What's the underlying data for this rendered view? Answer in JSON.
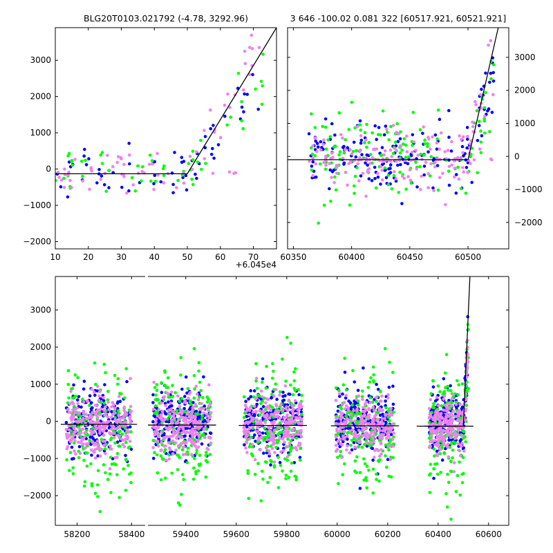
{
  "colors": {
    "background": "#ffffff",
    "series_1": "#0000ff",
    "series_2": "#00ff00",
    "series_3": "#ee82ee",
    "model_line": "#000000"
  },
  "chart_data": [
    {
      "id": "top-left",
      "type": "scatter",
      "title": "BLG20T0103.021792 (-4.78, 3292.96)",
      "xlabel": "",
      "ylabel": "",
      "x_offset_label": "+6.045e4",
      "xlim": [
        10,
        77
      ],
      "ylim": [
        -2200,
        3900
      ],
      "xticks": [
        10,
        20,
        30,
        40,
        50,
        60,
        70
      ],
      "yticks": [
        -2000,
        -1000,
        0,
        1000,
        2000,
        3000
      ],
      "ytick_side": "left",
      "grid": false,
      "legend": "none",
      "model": {
        "x": [
          10,
          50,
          77
        ],
        "y": [
          -130,
          -130,
          3900
        ]
      },
      "series": [
        {
          "color": "#0000ff",
          "n": 60,
          "xrange": [
            10,
            72
          ],
          "center": -100,
          "spread": 350,
          "rise_start": 52,
          "rise_slope": 140,
          "seed": 11
        },
        {
          "color": "#00ff00",
          "n": 55,
          "xrange": [
            10,
            73
          ],
          "center": -120,
          "spread": 380,
          "rise_start": 52,
          "rise_slope": 120,
          "seed": 23
        },
        {
          "color": "#ee82ee",
          "n": 70,
          "xrange": [
            10,
            73
          ],
          "center": -110,
          "spread": 260,
          "rise_start": 50,
          "rise_slope": 165,
          "flat_level": -120,
          "seed": 37
        }
      ]
    },
    {
      "id": "top-right",
      "type": "scatter",
      "title": "3 646 -100.02 0.081 322 [60517.921, 60521.921]",
      "xlabel": "",
      "ylabel": "",
      "xlim": [
        60345,
        60535
      ],
      "ylim": [
        -2800,
        3900
      ],
      "xticks": [
        60350,
        60400,
        60450,
        60500
      ],
      "yticks": [
        -2000,
        -1000,
        0,
        1000,
        2000,
        3000
      ],
      "ytick_side": "right",
      "grid": false,
      "legend": "none",
      "model": {
        "x": [
          60345,
          60500,
          60526
        ],
        "y": [
          -100,
          -100,
          3900
        ]
      },
      "series": [
        {
          "color": "#0000ff",
          "n": 170,
          "xrange": [
            60363,
            60522
          ],
          "center": 0,
          "spread": 500,
          "rise_start": 60502,
          "rise_slope": 130,
          "seed": 51
        },
        {
          "color": "#00ff00",
          "n": 150,
          "xrange": [
            60363,
            60522
          ],
          "center": -40,
          "spread": 620,
          "rise_start": 60502,
          "rise_slope": 120,
          "seed": 67
        },
        {
          "color": "#ee82ee",
          "n": 180,
          "xrange": [
            60363,
            60522
          ],
          "center": -60,
          "spread": 450,
          "rise_start": 60500,
          "rise_slope": 150,
          "flat_level": -100,
          "seed": 79
        }
      ]
    },
    {
      "id": "bottom",
      "type": "scatter",
      "title": "",
      "xlabel": "",
      "ylabel": "",
      "xlim": [
        58120,
        60680
      ],
      "ylim": [
        -2800,
        3900
      ],
      "xticks": [
        58200,
        58400,
        59400,
        59600,
        59800,
        60000,
        60200,
        60400,
        60600
      ],
      "yticks": [
        -2000,
        -1000,
        0,
        1000,
        2000,
        3000
      ],
      "ytick_side": "left",
      "grid": false,
      "legend": "none",
      "x_breaks": [
        58450
      ],
      "segments": [
        {
          "xrange": [
            58120,
            58450
          ]
        },
        {
          "xrange": [
            59250,
            60680
          ]
        }
      ],
      "seasons": [
        {
          "xrange": [
            58160,
            58400
          ]
        },
        {
          "xrange": [
            59270,
            59500
          ]
        },
        {
          "xrange": [
            59630,
            59860
          ]
        },
        {
          "xrange": [
            59995,
            60225
          ]
        },
        {
          "xrange": [
            60365,
            60520
          ]
        }
      ],
      "model": {
        "x": [
          60315,
          60500,
          60526
        ],
        "y": [
          -130,
          -130,
          3900
        ]
      },
      "season_levels": [
        -80,
        -100,
        -110,
        -120,
        -130
      ],
      "series": [
        {
          "color": "#0000ff",
          "n_per_season": 220,
          "center": 0,
          "spread": 420,
          "seed": 101
        },
        {
          "color": "#00ff00",
          "n_per_season": 180,
          "center": -200,
          "spread": 750,
          "seed": 131
        },
        {
          "color": "#ee82ee",
          "n_per_season": 230,
          "center": -120,
          "spread": 380,
          "seed": 157
        }
      ]
    }
  ]
}
